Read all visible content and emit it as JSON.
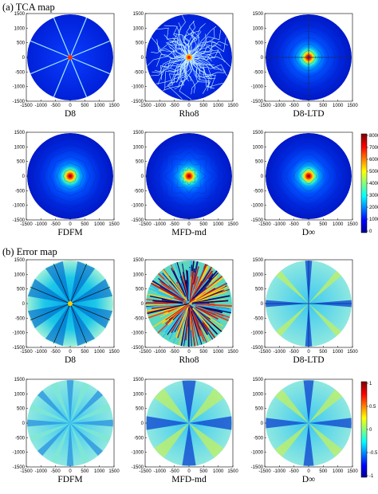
{
  "figure": {
    "section_a": {
      "label": "(a) TCA map"
    },
    "section_b": {
      "label": "(b) Error map"
    },
    "axis_ticks": {
      "x": [
        "-1500",
        "-1000",
        "-500",
        "0",
        "500",
        "1000",
        "1500"
      ],
      "y": [
        "1500",
        "1000",
        "500",
        "0",
        "-500",
        "-1000",
        "-1500"
      ]
    },
    "tca_colorbar": {
      "ticks": [
        "8000",
        "7000",
        "6000",
        "5000",
        "4000",
        "3000",
        "2000",
        "1000",
        "0"
      ]
    },
    "error_colorbar": {
      "ticks": [
        "1",
        "0.5",
        "0",
        "-0.5",
        "-1"
      ]
    },
    "tca_panels": [
      {
        "label": "D8",
        "style": "tca-d8"
      },
      {
        "label": "Rho8",
        "style": "tca-rho8"
      },
      {
        "label": "D8-LTD",
        "style": "tca-ltd"
      },
      {
        "label": "FDFM",
        "style": "tca-fdfm"
      },
      {
        "label": "MFD-md",
        "style": "tca-mfd"
      },
      {
        "label": "D∞",
        "style": "tca-dinf"
      }
    ],
    "error_panels": [
      {
        "label": "D8",
        "style": "err-d8"
      },
      {
        "label": "Rho8",
        "style": "err-rho8"
      },
      {
        "label": "D8-LTD",
        "style": "err-ltd"
      },
      {
        "label": "FDFM",
        "style": "err-fdfm"
      },
      {
        "label": "MFD-md",
        "style": "err-mfd"
      },
      {
        "label": "D∞",
        "style": "err-dinf"
      }
    ]
  }
}
